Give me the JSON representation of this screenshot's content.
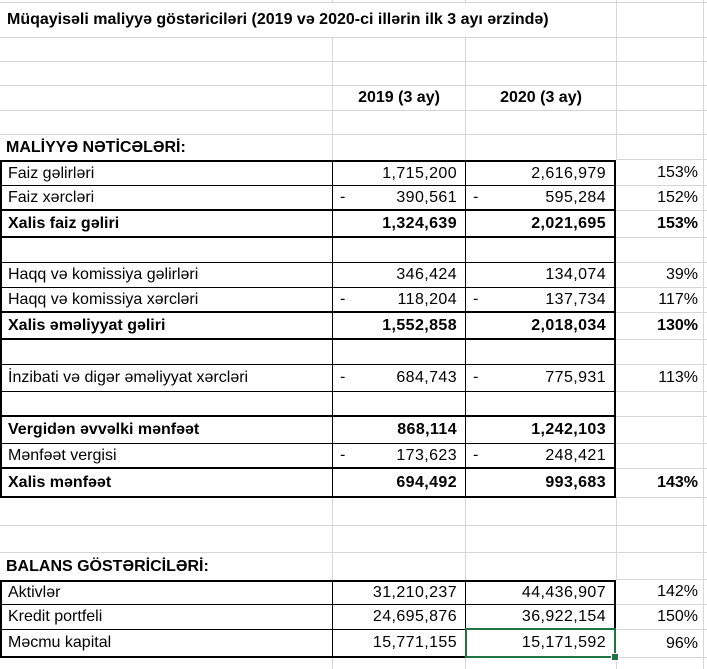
{
  "title": "Müqayisəli maliyyə göstəriciləri (2019 və 2020-ci illərin ilk 3 ayı ərzində)",
  "column_headers": {
    "y2019": "2019 (3 ay)",
    "y2020": "2020 (3 ay)"
  },
  "sections": {
    "finance": "MALİYYƏ NƏTİCƏLƏRİ:",
    "balance": "BALANS GÖSTƏRİCİLƏRİ:"
  },
  "rows": {
    "faiz_gelirleri": {
      "label": "Faiz gəlirləri",
      "v2019": "1,715,200",
      "v2020": "2,616,979",
      "pct": "153%"
    },
    "faiz_xercleri": {
      "label": "Faiz xərcləri",
      "sign": "-",
      "v2019": "390,561",
      "v2020": "595,284",
      "pct": "152%"
    },
    "xalis_faiz": {
      "label": "Xalis faiz gəliri",
      "v2019": "1,324,639",
      "v2020": "2,021,695",
      "pct": "153%"
    },
    "haqq_gelirleri": {
      "label": "Haqq və komissiya gəlirləri",
      "v2019": "346,424",
      "v2020": "134,074",
      "pct": "39%"
    },
    "haqq_xercleri": {
      "label": "Haqq və komissiya xərcləri",
      "sign": "-",
      "v2019": "118,204",
      "v2020": "137,734",
      "pct": "117%"
    },
    "xalis_emeliyyat": {
      "label": "Xalis əməliyyat gəliri",
      "v2019": "1,552,858",
      "v2020": "2,018,034",
      "pct": "130%"
    },
    "inzibati": {
      "label": "İnzibati və digər əməliyyat xərcləri",
      "sign": "-",
      "v2019": "684,743",
      "v2020": "775,931",
      "pct": "113%"
    },
    "vergiden": {
      "label": "Vergidən əvvəlki mənfəət",
      "v2019": "868,114",
      "v2020": "1,242,103"
    },
    "menfeet_vergisi": {
      "label": "Mənfəət vergisi",
      "sign": "-",
      "v2019": "173,623",
      "v2020": "248,421"
    },
    "xalis_menfeet": {
      "label": "Xalis mənfəət",
      "v2019": "694,492",
      "v2020": "993,683",
      "pct": "143%"
    },
    "aktivler": {
      "label": "Aktivlər",
      "v2019": "31,210,237",
      "v2020": "44,436,907",
      "pct": "142%"
    },
    "kredit_portfeli": {
      "label": "Kredit portfeli",
      "v2019": "24,695,876",
      "v2020": "36,922,154",
      "pct": "150%"
    },
    "mecmu_kapital": {
      "label": "Məcmu kapital",
      "v2019": "15,771,155",
      "v2020": "15,171,592",
      "pct": "96%"
    }
  },
  "selection": {
    "selected_row": "Məcmu kapital",
    "selected_column": "2020 (3 ay)",
    "selected_value": "15,171,592"
  },
  "colors": {
    "selection_border": "#217346",
    "gridline": "#d6d6d6",
    "table_border": "#000000"
  }
}
